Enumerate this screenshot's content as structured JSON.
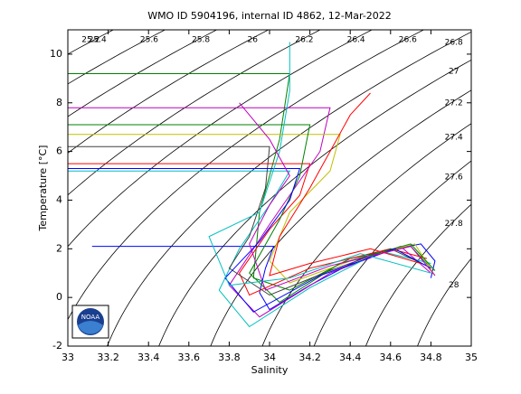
{
  "chart_data": {
    "type": "ts-diagram",
    "title": "WMO ID 5904196, internal ID 4862, 12-Mar-2022",
    "xlabel": "Salinity",
    "ylabel": "Temperature [°C]",
    "xlim": [
      33,
      35
    ],
    "xticks": [
      33,
      33.2,
      33.4,
      33.6,
      33.8,
      34,
      34.2,
      34.4,
      34.6,
      34.8,
      35
    ],
    "ylim": [
      -2,
      11
    ],
    "yticks": [
      -2,
      0,
      2,
      4,
      6,
      8,
      10
    ],
    "contour_color": "#000000",
    "contour_levels": [
      25.2,
      25.4,
      25.6,
      25.8,
      26,
      26.2,
      26.4,
      26.6,
      26.8,
      27,
      27.2,
      27.4,
      27.6,
      27.8,
      28
    ],
    "logo_text": "NOAA",
    "series": [
      {
        "color": "#0000ff",
        "x": [
          33.12,
          34.02,
          33.98,
          33.95,
          34.0,
          34.2,
          34.5,
          34.75,
          34.82,
          34.8
        ],
        "values": [
          2.1,
          2.1,
          1.2,
          0.2,
          -0.5,
          0.5,
          1.8,
          2.2,
          1.5,
          0.8
        ]
      },
      {
        "color": "#008000",
        "x": [
          33.0,
          34.1,
          34.05,
          33.95,
          33.92,
          34.1,
          34.4,
          34.7,
          34.8
        ],
        "values": [
          9.2,
          9.2,
          6.5,
          3.5,
          0.8,
          0.3,
          1.6,
          2.1,
          1.2
        ]
      },
      {
        "color": "#ff0000",
        "x": [
          33.0,
          34.2,
          34.15,
          34.0,
          33.85,
          33.9,
          34.2,
          34.6,
          34.78
        ],
        "values": [
          5.5,
          5.5,
          4.2,
          2.8,
          1.0,
          0.1,
          1.2,
          2.0,
          1.6
        ]
      },
      {
        "color": "#bf00bf",
        "x": [
          33.0,
          34.3,
          34.25,
          34.0,
          33.8,
          33.95,
          34.3,
          34.65,
          34.8
        ],
        "values": [
          7.8,
          7.8,
          6.0,
          3.0,
          0.5,
          -0.8,
          1.0,
          2.1,
          1.0
        ]
      },
      {
        "color": "#00bfbf",
        "x": [
          33.0,
          34.1,
          34.0,
          33.85,
          33.75,
          33.9,
          34.2,
          34.55,
          34.8
        ],
        "values": [
          5.2,
          5.2,
          3.8,
          2.0,
          0.3,
          -1.2,
          0.4,
          1.9,
          1.4
        ]
      },
      {
        "color": "#bfbf00",
        "x": [
          33.0,
          34.35,
          34.3,
          34.1,
          34.0,
          34.1,
          34.4,
          34.72,
          34.82
        ],
        "values": [
          6.7,
          6.7,
          5.2,
          3.5,
          1.5,
          0.6,
          1.5,
          2.2,
          0.9
        ]
      },
      {
        "color": "#404040",
        "x": [
          33.0,
          34.0,
          33.98,
          33.9,
          33.8,
          34.0,
          34.3,
          34.6,
          34.78
        ],
        "values": [
          6.2,
          6.2,
          4.5,
          2.5,
          1.2,
          0.1,
          1.1,
          2.0,
          1.3
        ]
      },
      {
        "color": "#008000",
        "x": [
          33.0,
          34.2,
          34.15,
          34.05,
          33.9,
          34.05,
          34.35,
          34.7,
          34.82
        ],
        "values": [
          7.1,
          7.1,
          5.0,
          3.2,
          1.0,
          -0.2,
          1.4,
          2.2,
          1.1
        ]
      },
      {
        "color": "#0000ff",
        "x": [
          33.0,
          34.15,
          34.1,
          33.95,
          33.78,
          33.92,
          34.25,
          34.62,
          34.8
        ],
        "values": [
          5.3,
          5.3,
          4.0,
          2.3,
          0.8,
          -0.6,
          0.9,
          2.0,
          1.2
        ]
      },
      {
        "color": "#ff0000",
        "x": [
          34.5,
          34.4,
          34.3,
          34.2,
          34.05,
          34.0,
          34.2,
          34.5,
          34.75
        ],
        "values": [
          8.4,
          7.5,
          6.0,
          4.5,
          2.5,
          0.9,
          1.4,
          2.0,
          1.4
        ]
      },
      {
        "color": "#00bfbf",
        "x": [
          34.1,
          34.1,
          34.05,
          33.95,
          33.7,
          33.8,
          34.1,
          34.45,
          34.8
        ],
        "values": [
          10.5,
          8.5,
          6.0,
          3.5,
          2.5,
          0.5,
          0.8,
          1.8,
          1.0
        ]
      },
      {
        "color": "#bf00bf",
        "x": [
          33.85,
          34.0,
          34.1,
          34.0,
          33.9,
          33.98,
          34.3,
          34.7,
          34.82
        ],
        "values": [
          8.0,
          6.5,
          5.0,
          3.8,
          2.2,
          0.3,
          1.3,
          2.1,
          0.9
        ]
      }
    ]
  }
}
